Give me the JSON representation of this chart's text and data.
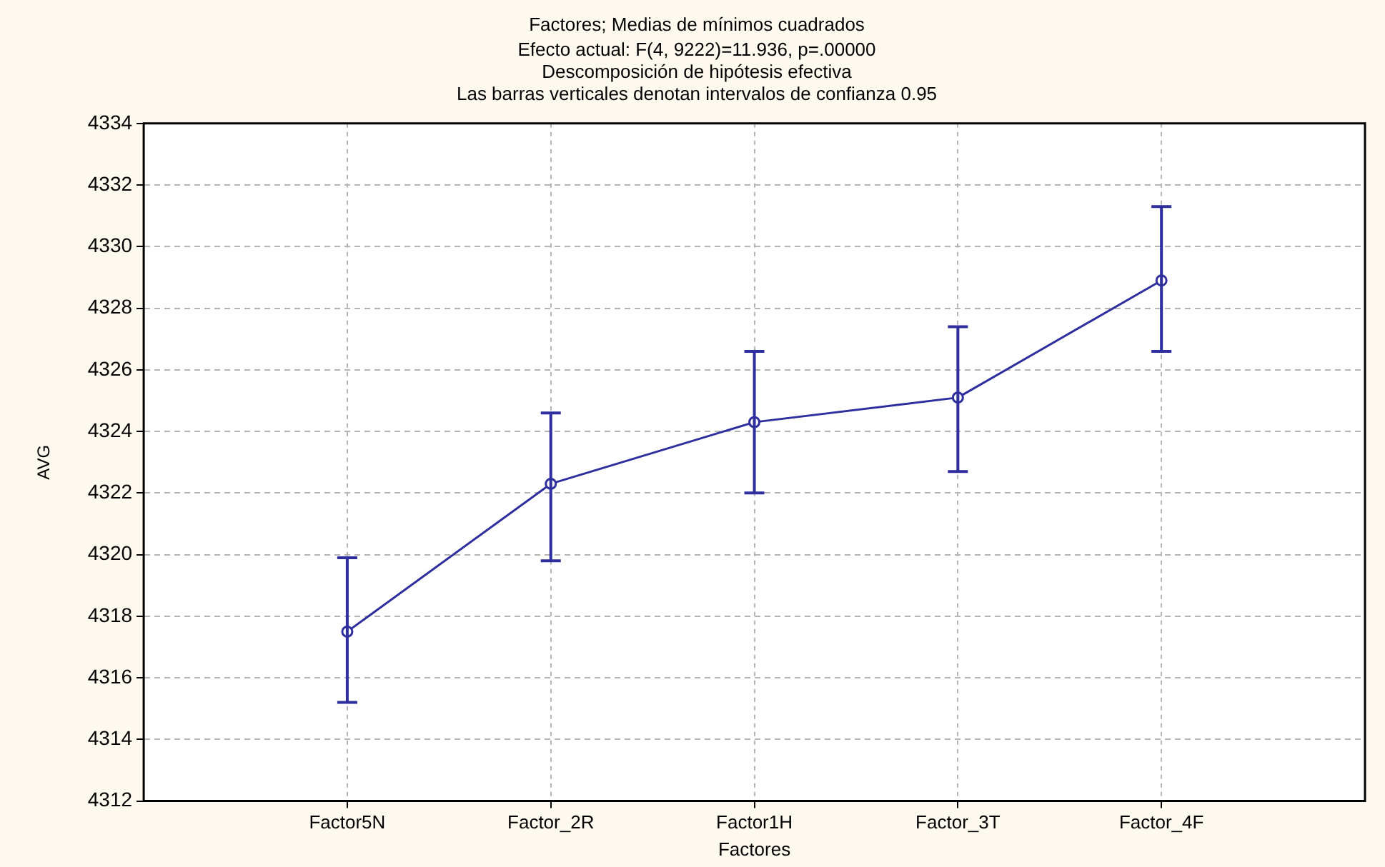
{
  "chart_data": {
    "type": "line",
    "title": "Factores; Medias de mínimos cuadrados",
    "subtitle": "Efecto actual: F(4, 9222)=11.936, p=.00000\nDescomposición de hipótesis efectiva\nLas barras verticales denotan intervalos de confianza 0.95",
    "xlabel": "Factores",
    "ylabel": "AVG",
    "categories": [
      "Factor5N",
      "Factor_2R",
      "Factor1H",
      "Factor_3T",
      "Factor_4F"
    ],
    "series": [
      {
        "color": "#2e2e9e",
        "values": [
          4317.5,
          4322.3,
          4324.3,
          4325.1,
          4328.9
        ],
        "errors": [
          [
            4315.2,
            4319.9
          ],
          [
            4319.8,
            4324.6
          ],
          [
            4322.0,
            4326.6
          ],
          [
            4322.7,
            4327.4
          ],
          [
            4326.6,
            4331.3
          ]
        ]
      }
    ],
    "ylim": [
      4312,
      4334
    ],
    "yticks": [
      4312,
      4314,
      4316,
      4318,
      4320,
      4322,
      4324,
      4326,
      4328,
      4330,
      4332,
      4334
    ],
    "grid": true,
    "legend": false,
    "marker": "circle",
    "line_style": "solid"
  }
}
